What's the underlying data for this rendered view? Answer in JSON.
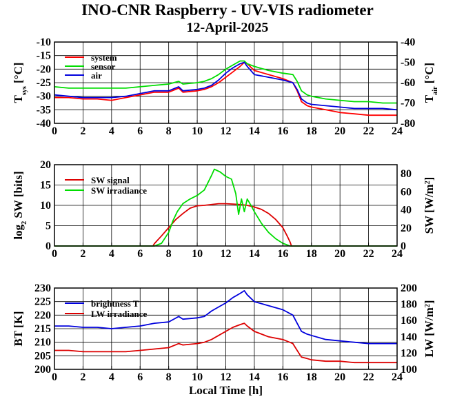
{
  "title": "INO-CNR Raspberry - UV-VIS radiometer",
  "subtitle": "12-April-2025",
  "chart_data": [
    {
      "type": "line",
      "xlabel": "",
      "ylabel": "T_sys [°C]",
      "y2label": "T_air [°C]",
      "xlim": [
        0,
        24
      ],
      "ylim": [
        -40,
        -10
      ],
      "y2lim": [
        -80,
        -40
      ],
      "xticks": [
        0,
        2,
        4,
        6,
        8,
        10,
        12,
        14,
        16,
        18,
        20,
        22,
        24
      ],
      "yticks": [
        -40,
        -35,
        -30,
        -25,
        -20,
        -15,
        -10
      ],
      "y2ticks": [
        -80,
        -70,
        -60,
        -50,
        -40
      ],
      "grid": true,
      "legend_position": "top-left",
      "series": [
        {
          "name": "system",
          "color": "#ff0000",
          "axis": "left",
          "x": [
            0,
            1,
            2,
            3,
            4,
            5,
            6,
            7,
            8,
            8.7,
            9,
            10,
            10.5,
            11,
            11.5,
            12,
            12.5,
            13,
            13.3,
            13.5,
            14,
            15,
            16,
            16.7,
            17,
            17.3,
            17.7,
            18,
            19,
            20,
            21,
            22,
            23,
            24
          ],
          "y": [
            -30.5,
            -30.5,
            -31,
            -31,
            -31.5,
            -30.5,
            -29.5,
            -28.5,
            -28.5,
            -27,
            -28.5,
            -28,
            -27.5,
            -26.5,
            -25,
            -23,
            -21,
            -19,
            -17.5,
            -18,
            -20.5,
            -22,
            -23.5,
            -25,
            -28,
            -32,
            -33.5,
            -34,
            -35,
            -36,
            -36.5,
            -37,
            -37,
            -37
          ]
        },
        {
          "name": "sensor",
          "color": "#00dd00",
          "axis": "left",
          "x": [
            0,
            1,
            2,
            3,
            4,
            5,
            6,
            7,
            8,
            8.7,
            9,
            10,
            10.5,
            11,
            11.5,
            12,
            12.5,
            13,
            13.3,
            13.5,
            14,
            15,
            16,
            16.7,
            17,
            17.3,
            17.7,
            18,
            19,
            20,
            21,
            22,
            23,
            24
          ],
          "y": [
            -26.5,
            -27,
            -27,
            -27,
            -27,
            -27,
            -26.5,
            -26,
            -25.5,
            -24.5,
            -25.5,
            -25,
            -24.5,
            -23.5,
            -22,
            -20,
            -18.5,
            -17,
            -17,
            -18,
            -19,
            -20.5,
            -21.5,
            -22,
            -24.5,
            -28,
            -29.5,
            -30,
            -31,
            -31.5,
            -32,
            -32,
            -32.5,
            -32.5
          ]
        },
        {
          "name": "air",
          "color": "#0000dd",
          "axis": "left",
          "x": [
            0,
            1,
            2,
            3,
            4,
            5,
            6,
            7,
            8,
            8.7,
            9,
            10,
            10.5,
            11,
            11.5,
            12,
            12.5,
            13,
            13.3,
            13.5,
            14,
            15,
            16,
            16.7,
            17,
            17.3,
            17.7,
            18,
            19,
            20,
            21,
            22,
            23,
            24
          ],
          "y": [
            -29.5,
            -30,
            -30.5,
            -30.5,
            -30.5,
            -30,
            -29,
            -28,
            -28,
            -26.5,
            -28,
            -27.5,
            -27,
            -26,
            -24,
            -21.5,
            -19.5,
            -18,
            -17.5,
            -19,
            -22,
            -23,
            -24,
            -25,
            -27.5,
            -31,
            -32.5,
            -33,
            -33.5,
            -34,
            -34.5,
            -34.5,
            -34.5,
            -35
          ]
        }
      ]
    },
    {
      "type": "line",
      "xlabel": "",
      "ylabel": "log2 SW [bits]",
      "y2label": "SW [W/m2]",
      "xlim": [
        0,
        24
      ],
      "ylim": [
        0,
        20
      ],
      "y2lim": [
        0,
        90
      ],
      "xticks": [
        0,
        2,
        4,
        6,
        8,
        10,
        12,
        14,
        16,
        18,
        20,
        22,
        24
      ],
      "yticks": [
        0,
        5,
        10,
        15,
        20
      ],
      "y2ticks": [
        0,
        20,
        40,
        60,
        80
      ],
      "grid": true,
      "legend_position": "top-left",
      "series": [
        {
          "name": "SW signal",
          "color": "#dd0000",
          "axis": "left",
          "x": [
            0,
            6.9,
            7,
            7.5,
            8,
            8.5,
            9,
            9.5,
            10,
            10.5,
            11,
            11.5,
            12,
            12.5,
            13,
            13.5,
            14,
            14.5,
            15,
            15.5,
            16,
            16.3,
            16.5,
            16.6,
            24
          ],
          "y": [
            0,
            0,
            0.6,
            2.5,
            4.5,
            6.5,
            8,
            9.3,
            9.9,
            10,
            10.2,
            10.4,
            10.4,
            10.3,
            10.2,
            10,
            9.6,
            9,
            8,
            6.5,
            4.5,
            2.5,
            1,
            0,
            0
          ]
        },
        {
          "name": "SW irradiance",
          "color": "#00dd00",
          "axis": "right",
          "x": [
            0,
            7,
            7.5,
            8,
            8.3,
            8.6,
            9,
            9.5,
            10,
            10.5,
            11,
            11.2,
            11.6,
            12,
            12.4,
            12.7,
            12.9,
            13.1,
            13.3,
            13.5,
            13.8,
            14,
            14.5,
            15,
            15.5,
            16,
            16.5,
            24
          ],
          "y": [
            0,
            0,
            3,
            15,
            28,
            38,
            47,
            52,
            56,
            62,
            78,
            85,
            82,
            77,
            74,
            58,
            35,
            52,
            38,
            52,
            44,
            38,
            25,
            15,
            8,
            3,
            0,
            0
          ]
        }
      ]
    },
    {
      "type": "line",
      "xlabel": "Local Time [h]",
      "ylabel": "BT [K]",
      "y2label": "LW [W/m2]",
      "xlim": [
        0,
        24
      ],
      "ylim": [
        200,
        230
      ],
      "y2lim": [
        100,
        200
      ],
      "xticks": [
        0,
        2,
        4,
        6,
        8,
        10,
        12,
        14,
        16,
        18,
        20,
        22,
        24
      ],
      "yticks": [
        200,
        205,
        210,
        215,
        220,
        225,
        230
      ],
      "y2ticks": [
        100,
        120,
        140,
        160,
        180,
        200
      ],
      "grid": true,
      "legend_position": "top-left",
      "series": [
        {
          "name": "brightness T",
          "color": "#0000dd",
          "axis": "left",
          "x": [
            0,
            1,
            2,
            3,
            4,
            5,
            6,
            7,
            8,
            8.7,
            9,
            10,
            10.5,
            11,
            11.5,
            12,
            12.5,
            13,
            13.3,
            13.5,
            14,
            15,
            16,
            16.7,
            17,
            17.3,
            17.7,
            18,
            19,
            20,
            21,
            22,
            23,
            24
          ],
          "y": [
            216,
            216,
            215.5,
            215.5,
            215,
            215.5,
            216,
            217,
            217.5,
            219.5,
            218.5,
            219,
            219.5,
            221.5,
            223,
            224.5,
            226.5,
            228,
            229,
            227.5,
            225,
            223.5,
            222,
            220,
            217,
            214,
            213,
            212.5,
            211,
            210.5,
            210,
            209.5,
            209.5,
            209.5
          ]
        },
        {
          "name": "LW irradiance",
          "color": "#dd0000",
          "axis": "left",
          "x": [
            0,
            1,
            2,
            3,
            4,
            5,
            6,
            7,
            8,
            8.7,
            9,
            10,
            10.5,
            11,
            11.5,
            12,
            12.5,
            13,
            13.3,
            13.5,
            14,
            15,
            16,
            16.7,
            17,
            17.3,
            17.7,
            18,
            19,
            20,
            21,
            22,
            23,
            24
          ],
          "y": [
            207,
            207,
            206.5,
            206.5,
            206.5,
            206.5,
            207,
            207.5,
            208,
            209.5,
            209,
            209.5,
            210,
            211,
            212.5,
            214,
            215.5,
            216.5,
            217,
            216,
            214,
            212,
            211,
            209.5,
            207,
            204.5,
            204,
            203.5,
            203,
            203,
            202.5,
            202.5,
            202.5,
            202.5
          ]
        }
      ]
    }
  ]
}
